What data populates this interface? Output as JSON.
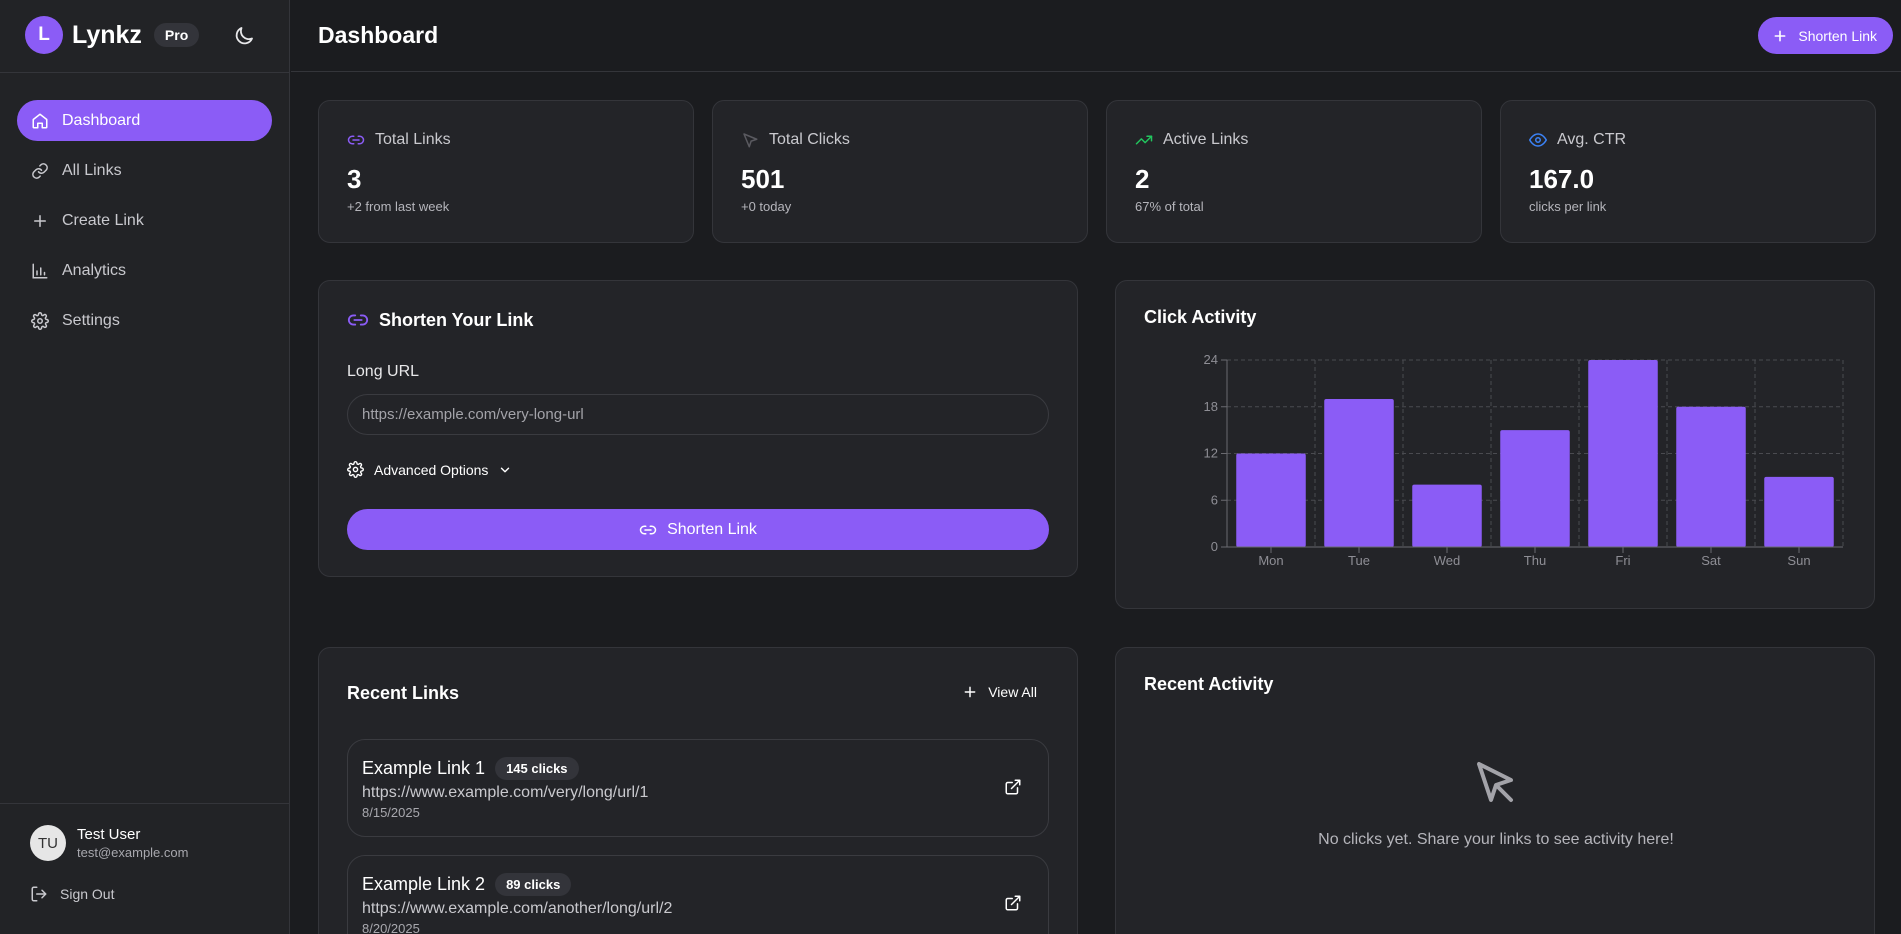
{
  "brand": {
    "initial": "L",
    "name": "Lynkz",
    "badge": "Pro"
  },
  "sidebar": {
    "items": [
      {
        "label": "Dashboard",
        "icon": "home-icon",
        "active": true
      },
      {
        "label": "All Links",
        "icon": "link-icon",
        "active": false
      },
      {
        "label": "Create Link",
        "icon": "plus-icon",
        "active": false
      },
      {
        "label": "Analytics",
        "icon": "bar-chart-icon",
        "active": false
      },
      {
        "label": "Settings",
        "icon": "gear-icon",
        "active": false
      }
    ]
  },
  "user": {
    "initials": "TU",
    "name": "Test User",
    "email": "test@example.com",
    "sign_out": "Sign Out"
  },
  "header": {
    "title": "Dashboard",
    "button_label": "Shorten Link"
  },
  "stats": [
    {
      "label": "Total Links",
      "value": "3",
      "sub": "+2 from last week",
      "icon": "link-icon",
      "color": "#8b5cf6"
    },
    {
      "label": "Total Clicks",
      "value": "501",
      "sub": "+0 today",
      "icon": "cursor-icon",
      "color": "#5a5a60"
    },
    {
      "label": "Active Links",
      "value": "2",
      "sub": "67% of total",
      "icon": "trending-up-icon",
      "color": "#22c55e"
    },
    {
      "label": "Avg. CTR",
      "value": "167.0",
      "sub": "clicks per link",
      "icon": "eye-icon",
      "color": "#3b82f6"
    }
  ],
  "shorten": {
    "title": "Shorten Your Link",
    "field_label": "Long URL",
    "placeholder": "https://example.com/very-long-url",
    "advanced_label": "Advanced Options",
    "button_label": "Shorten Link"
  },
  "chart_title": "Click Activity",
  "chart_data": {
    "type": "bar",
    "categories": [
      "Mon",
      "Tue",
      "Wed",
      "Thu",
      "Fri",
      "Sat",
      "Sun"
    ],
    "values": [
      12,
      19,
      8,
      15,
      24,
      18,
      9
    ],
    "ylim": [
      0,
      24
    ],
    "yticks": [
      0,
      6,
      12,
      18,
      24
    ],
    "title": "Click Activity",
    "xlabel": "",
    "ylabel": "",
    "grid": true,
    "color": "#8b5cf6"
  },
  "recent_links": {
    "title": "Recent Links",
    "view_all": "View All",
    "items": [
      {
        "title": "Example Link 1",
        "clicks": "145 clicks",
        "url": "https://www.example.com/very/long/url/1",
        "date": "8/15/2025"
      },
      {
        "title": "Example Link 2",
        "clicks": "89 clicks",
        "url": "https://www.example.com/another/long/url/2",
        "date": "8/20/2025"
      }
    ]
  },
  "recent_activity": {
    "title": "Recent Activity",
    "empty_text": "No clicks yet. Share your links to see activity here!"
  },
  "colors": {
    "accent": "#8b5cf6",
    "background": "#1b1c1f",
    "card": "#232428"
  }
}
